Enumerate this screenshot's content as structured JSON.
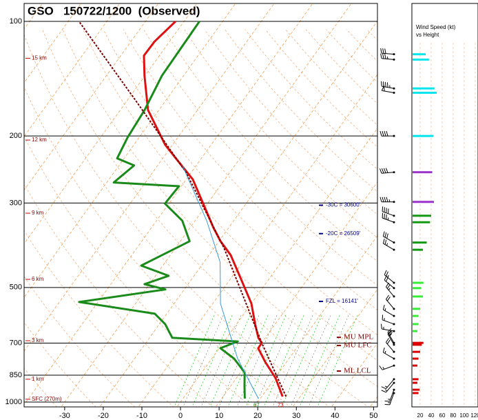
{
  "chart_data": {
    "type": "skewt",
    "title": "GSO   150722/1200  (Observed)",
    "ylim": [
      1000,
      100
    ],
    "yticks": [
      100,
      200,
      300,
      500,
      700,
      850,
      1000
    ],
    "log_y": true,
    "xlim": [
      -40.5,
      51
    ],
    "xticks": [
      -30,
      -20,
      -10,
      0,
      10,
      20,
      30,
      40,
      50
    ],
    "skew": 30.8,
    "series": [
      {
        "color": "#dd1111",
        "width": 3,
        "dash": false,
        "pressure": [
          967,
          864,
          785,
          722,
          699,
          678,
          624,
          551,
          466,
          411,
          378,
          348,
          301,
          260,
          229,
          211,
          171,
          139,
          123,
          113,
          100
        ],
        "values": [
          25.4,
          20.1,
          14.5,
          10.1,
          10.0,
          8.2,
          4.8,
          0.0,
          -8.2,
          -14.4,
          -19.6,
          -24.0,
          -31.1,
          -38.3,
          -46.6,
          -51.9,
          -62.8,
          -70.1,
          -74.0,
          -73.9,
          -72.2
        ]
      },
      {
        "color": "#1a8a1a",
        "width": 3,
        "dash": false,
        "pressure": [
          979,
          908,
          836,
          769,
          722,
          693,
          678,
          624,
          586,
          546,
          506,
          490,
          466,
          438,
          378,
          334,
          301,
          271,
          265,
          239,
          229,
          202,
          171,
          139,
          100
        ],
        "values": [
          16.0,
          13.6,
          11.1,
          5.8,
          0.3,
          3.5,
          -14.1,
          -18.5,
          -23.1,
          -44.9,
          -24.9,
          -31.3,
          -26.6,
          -35.6,
          -27.6,
          -33.3,
          -41.0,
          -40.6,
          -58.2,
          -56.1,
          -61.8,
          -63.0,
          -63.7,
          -65.6,
          -66.0
        ]
      },
      {
        "color": "#7a0000",
        "width": 2,
        "dash": true,
        "pressure": [
          967,
          699,
          394,
          249,
          164,
          100
        ],
        "values": [
          26.3,
          10.0,
          -17.4,
          -41.4,
          -66.8,
          -97.2
        ]
      },
      {
        "color": "#3399dd",
        "width": 1,
        "dash": false,
        "pressure": [
          979,
          769,
          551,
          429,
          334,
          239
        ],
        "values": [
          19.5,
          6.7,
          -8.0,
          -15.8,
          -27.0,
          -43.6
        ]
      }
    ],
    "height_labels": [
      {
        "label": "15 km",
        "pressure": 125
      },
      {
        "label": "12 km",
        "pressure": 205
      },
      {
        "label": "9 km",
        "pressure": 319
      },
      {
        "label": "6 km",
        "pressure": 476
      },
      {
        "label": "3 km",
        "pressure": 690
      },
      {
        "label": "1 km",
        "pressure": 871
      },
      {
        "label": "SFC (270m)",
        "pressure": 983
      }
    ],
    "annotations": [
      {
        "text": "-30C = 30600'",
        "pressure": 304,
        "color": "#000080"
      },
      {
        "text": "-20C = 26509'",
        "pressure": 361,
        "color": "#000080"
      },
      {
        "text": "FZL = 16141'",
        "pressure": 544,
        "color": "#000080"
      },
      {
        "text": "MU MPL",
        "pressure": 676,
        "color": "#8b0000"
      },
      {
        "text": "MU LFC",
        "pressure": 710,
        "color": "#8b0000"
      },
      {
        "text": "ML LCL",
        "pressure": 829,
        "color": "#8b0000"
      }
    ],
    "sfc_dewpoint_f": 67,
    "sfc_temp_f": 73,
    "wind_panel": {
      "title": [
        "Wind Speed (kt)",
        "vs Height"
      ],
      "xlim": [
        0,
        120
      ],
      "xticks": [
        20,
        40,
        60,
        80,
        100,
        120
      ],
      "pressure": [
        122,
        126,
        150,
        154,
        200,
        249,
        298,
        324,
        337,
        381,
        398,
        486,
        502,
        528,
        569,
        594,
        624,
        651,
        699,
        707,
        738,
        769,
        802,
        871,
        890,
        928,
        947
      ],
      "speed": [
        30,
        36,
        46,
        50,
        44,
        42,
        45,
        40,
        38,
        32,
        25,
        26,
        22,
        25,
        20,
        17,
        17,
        15,
        26,
        23,
        20,
        17,
        15,
        17,
        15,
        19,
        17
      ],
      "direction": [
        275,
        275,
        280,
        280,
        270,
        265,
        270,
        290,
        290,
        300,
        300,
        310,
        310,
        320,
        320,
        300,
        290,
        280,
        330,
        330,
        320,
        300,
        250,
        220,
        220,
        200,
        200
      ],
      "color": [
        "#00e5ee",
        "#00e5ee",
        "#00e5ee",
        "#00e5ee",
        "#00e5ee",
        "#9933cc",
        "#9933cc",
        "#119911",
        "#119911",
        "#119911",
        "#119911",
        "#33ee33",
        "#33ee33",
        "#33ee33",
        "#33ee33",
        "#33ee33",
        "#33ee33",
        "#33ee33",
        "#dd0000",
        "#dd0000",
        "#dd0000",
        "#dd0000",
        "#dd0000",
        "#dd0000",
        "#dd0000",
        "#dd0000",
        "#dd0000"
      ]
    }
  }
}
